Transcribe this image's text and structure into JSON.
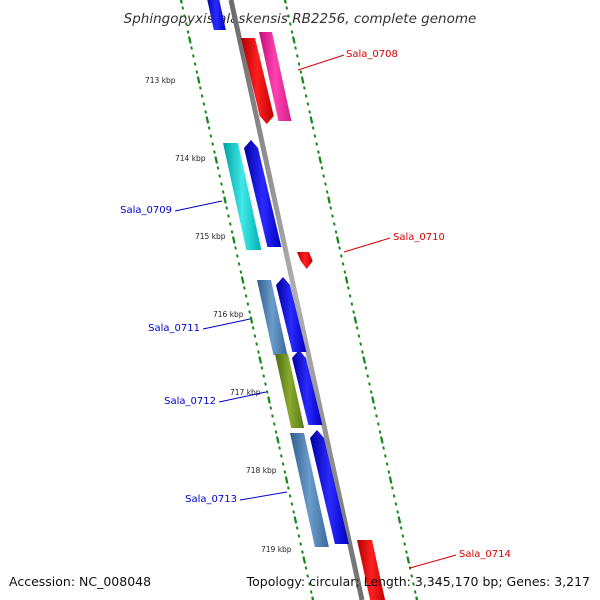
{
  "title": "Sphingopyxis alaskensis RB2256, complete genome",
  "accession": "Accession: NC_008048",
  "topology": "Topology: circular; Length: 3,345,170 bp; Genes: 3,217",
  "ruler": {
    "unit": "kbp",
    "labels": [
      "713 kbp",
      "714 kbp",
      "715 kbp",
      "716 kbp",
      "717 kbp",
      "718 kbp",
      "719 kbp"
    ]
  },
  "colors": {
    "backbone": "#888888",
    "ticks": "#118811",
    "right_label": "#dd0000",
    "left_label": "#0000cc"
  },
  "genes": [
    {
      "name": "Sala_0708",
      "label_side": "right"
    },
    {
      "name": "Sala_0709",
      "label_side": "left"
    },
    {
      "name": "Sala_0710",
      "label_side": "right"
    },
    {
      "name": "Sala_0711",
      "label_side": "left"
    },
    {
      "name": "Sala_0712",
      "label_side": "left"
    },
    {
      "name": "Sala_0713",
      "label_side": "left"
    },
    {
      "name": "Sala_0714",
      "label_side": "right"
    }
  ]
}
